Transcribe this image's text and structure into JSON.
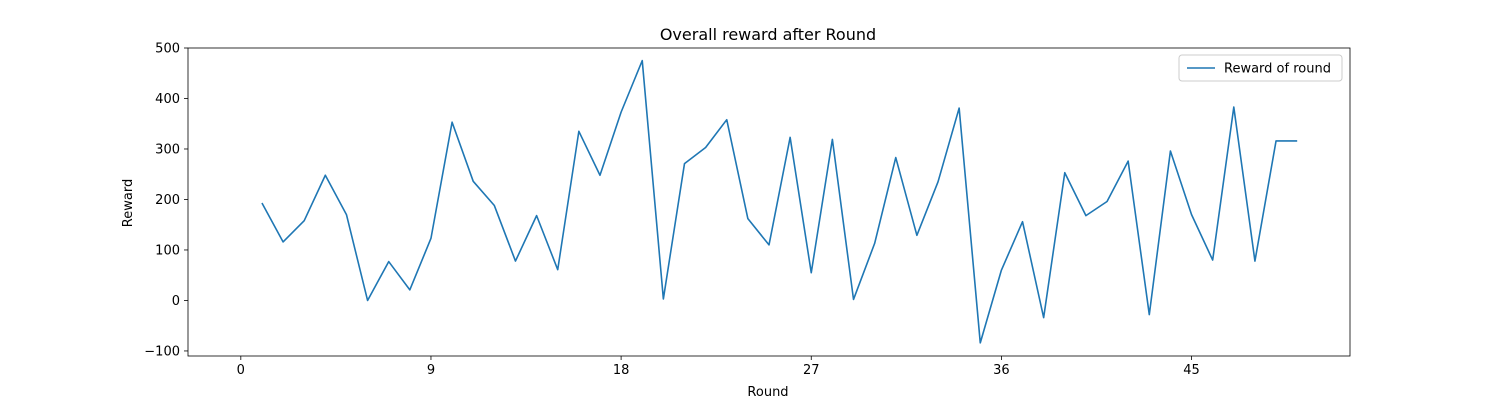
{
  "chart_data": {
    "type": "line",
    "title": "Overall reward after Round",
    "xlabel": "Round",
    "ylabel": "Reward",
    "xlim": [
      -2.5,
      52.5
    ],
    "ylim": [
      -110,
      500
    ],
    "xticks": [
      0,
      9,
      18,
      27,
      36,
      45
    ],
    "yticks": [
      -100,
      0,
      100,
      200,
      300,
      400,
      500
    ],
    "ytick_labels": [
      "−100",
      "0",
      "100",
      "200",
      "300",
      "400",
      "500"
    ],
    "legend": {
      "placement": "top-right"
    },
    "grid": false,
    "series": [
      {
        "name": "Reward of round",
        "color": "#1f77b4",
        "x": [
          1,
          2,
          3,
          4,
          5,
          6,
          7,
          8,
          9,
          10,
          11,
          12,
          13,
          14,
          15,
          16,
          17,
          18,
          19,
          20,
          21,
          22,
          23,
          24,
          25,
          26,
          27,
          28,
          29,
          30,
          31,
          32,
          33,
          34,
          35,
          36,
          37,
          38,
          39,
          40,
          41,
          42,
          43,
          44,
          45,
          46,
          47,
          48,
          49,
          50
        ],
        "values": [
          193,
          116,
          158,
          248,
          170,
          0,
          77,
          21,
          123,
          353,
          236,
          188,
          78,
          168,
          61,
          335,
          248,
          373,
          475,
          3,
          271,
          303,
          358,
          162,
          110,
          323,
          55,
          319,
          2,
          113,
          283,
          129,
          235,
          381,
          -84,
          60,
          156,
          -34,
          253,
          168,
          196,
          276,
          -28,
          296,
          170,
          80,
          383,
          78,
          316,
          316
        ]
      }
    ]
  }
}
